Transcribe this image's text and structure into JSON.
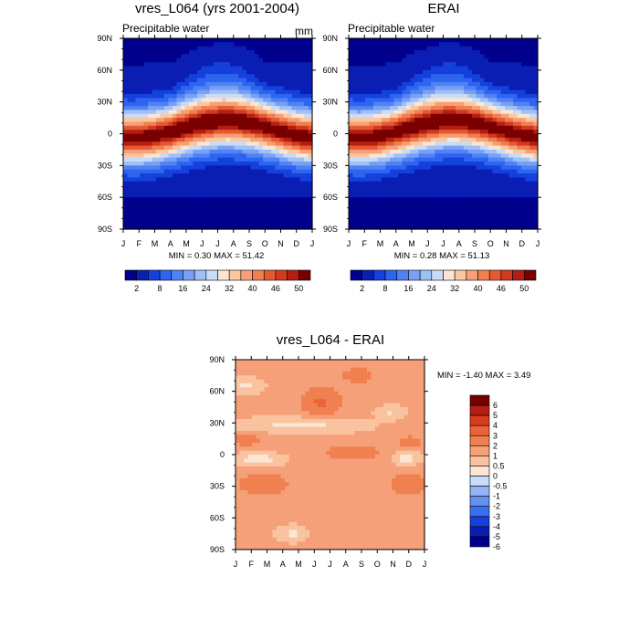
{
  "chart_data": [
    {
      "type": "heatmap",
      "title": "vres_L064 (yrs 2001-2004)",
      "subtitle": "Precipitable water",
      "units": "mm",
      "x_ticks": [
        "J",
        "F",
        "M",
        "A",
        "M",
        "J",
        "J",
        "A",
        "S",
        "O",
        "N",
        "D",
        "J"
      ],
      "y_ticks": [
        "90N",
        "60N",
        "30N",
        "0",
        "30S",
        "60S",
        "90S"
      ],
      "stats_text": "MIN =   0.30 MAX =  51.42",
      "min": 0.3,
      "max": 51.42,
      "colorbar_labels": [
        "2",
        "8",
        "16",
        "24",
        "32",
        "40",
        "46",
        "50"
      ]
    },
    {
      "type": "heatmap",
      "title": "ERAI",
      "subtitle": "Precipitable water",
      "x_ticks": [
        "J",
        "F",
        "M",
        "A",
        "M",
        "J",
        "J",
        "A",
        "S",
        "O",
        "N",
        "D",
        "J"
      ],
      "y_ticks": [
        "90N",
        "60N",
        "30N",
        "0",
        "30S",
        "60S",
        "90S"
      ],
      "stats_text": "MIN =   0.28 MAX =  51.13",
      "min": 0.28,
      "max": 51.13,
      "colorbar_labels": [
        "2",
        "8",
        "16",
        "24",
        "32",
        "40",
        "46",
        "50"
      ]
    },
    {
      "type": "heatmap",
      "title": "vres_L064 - ERAI",
      "x_ticks": [
        "J",
        "F",
        "M",
        "A",
        "M",
        "J",
        "J",
        "A",
        "S",
        "O",
        "N",
        "D",
        "J"
      ],
      "y_ticks": [
        "90N",
        "60N",
        "30N",
        "0",
        "30S",
        "60S",
        "90S"
      ],
      "stats_text": "MIN =  -1.40 MAX =   3.49",
      "min": -1.4,
      "max": 3.49,
      "colorbar_labels": [
        "6",
        "5",
        "4",
        "3",
        "2",
        "1",
        "0.5",
        "0",
        "-0.5",
        "-1",
        "-2",
        "-3",
        "-4",
        "-5",
        "-6"
      ]
    }
  ],
  "colors": {
    "abs_scale": [
      "#00008c",
      "#0a1eb4",
      "#1440dc",
      "#2d64f0",
      "#5082f5",
      "#78a0f5",
      "#a0c0f8",
      "#c8dcfa",
      "#fae6d2",
      "#fac8a0",
      "#f5a078",
      "#f08050",
      "#e65a32",
      "#d23a1e",
      "#b41e14",
      "#7a0000"
    ],
    "diff_scale": [
      "#00008c",
      "#0a1eb4",
      "#1440dc",
      "#3c6ef0",
      "#6490f0",
      "#96b4f5",
      "#c8dcfa",
      "#fae6d2",
      "#fac3a0",
      "#f5a078",
      "#f08050",
      "#eb6438",
      "#dc3c1e",
      "#b41e14",
      "#780000"
    ]
  }
}
